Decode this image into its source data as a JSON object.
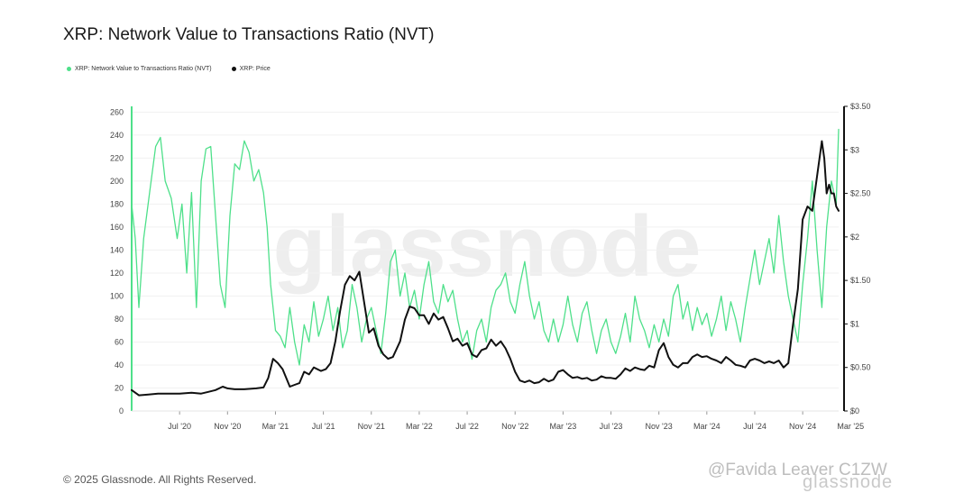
{
  "chart_data": {
    "type": "line",
    "title": "XRP: Network Value to Transactions Ratio (NVT)",
    "x_ticks": [
      "Jul '20",
      "Nov '20",
      "Mar '21",
      "Jul '21",
      "Nov '21",
      "Mar '22",
      "Jul '22",
      "Nov '22",
      "Mar '23",
      "Jul '23",
      "Nov '23",
      "Mar '24",
      "Jul '24",
      "Nov '24",
      "Mar '25"
    ],
    "y_left_ticks": [
      0,
      20,
      40,
      60,
      80,
      100,
      120,
      140,
      160,
      180,
      200,
      220,
      240,
      260
    ],
    "y_left_tick_labels": [
      "0",
      "20",
      "40",
      "60",
      "80",
      "100",
      "120",
      "140",
      "160",
      "180",
      "200",
      "220",
      "240",
      "260"
    ],
    "y_left_range": [
      0,
      265
    ],
    "y_right_ticks": [
      0,
      0.5,
      1,
      1.5,
      2,
      2.5,
      3,
      3.5
    ],
    "y_right_tick_labels": [
      "$0",
      "$0.50",
      "$1",
      "$1.50",
      "$2",
      "$2.50",
      "$3",
      "$3.50"
    ],
    "y_right_range": [
      0,
      3.5
    ],
    "x_range_months": [
      0,
      59
    ],
    "series": [
      {
        "name": "XRP: Network Value to Transactions Ratio (NVT)",
        "axis": "left",
        "color": "#4ee08a",
        "points": [
          [
            0,
            180
          ],
          [
            0.3,
            150
          ],
          [
            0.6,
            90
          ],
          [
            1,
            150
          ],
          [
            1.5,
            190
          ],
          [
            2,
            230
          ],
          [
            2.4,
            238
          ],
          [
            2.8,
            200
          ],
          [
            3.3,
            185
          ],
          [
            3.8,
            150
          ],
          [
            4.2,
            180
          ],
          [
            4.6,
            120
          ],
          [
            5,
            190
          ],
          [
            5.4,
            90
          ],
          [
            5.8,
            200
          ],
          [
            6.2,
            228
          ],
          [
            6.6,
            230
          ],
          [
            7,
            170
          ],
          [
            7.4,
            110
          ],
          [
            7.8,
            90
          ],
          [
            8.2,
            170
          ],
          [
            8.6,
            215
          ],
          [
            9,
            210
          ],
          [
            9.4,
            235
          ],
          [
            9.8,
            225
          ],
          [
            10.2,
            200
          ],
          [
            10.6,
            210
          ],
          [
            11,
            190
          ],
          [
            11.3,
            160
          ],
          [
            11.6,
            110
          ],
          [
            12,
            70
          ],
          [
            12.4,
            65
          ],
          [
            12.8,
            55
          ],
          [
            13.2,
            90
          ],
          [
            13.6,
            60
          ],
          [
            14,
            40
          ],
          [
            14.4,
            75
          ],
          [
            14.8,
            60
          ],
          [
            15.2,
            95
          ],
          [
            15.6,
            65
          ],
          [
            16,
            80
          ],
          [
            16.4,
            100
          ],
          [
            16.8,
            70
          ],
          [
            17.2,
            90
          ],
          [
            17.6,
            55
          ],
          [
            18,
            70
          ],
          [
            18.4,
            110
          ],
          [
            18.8,
            90
          ],
          [
            19.2,
            60
          ],
          [
            19.6,
            80
          ],
          [
            20,
            90
          ],
          [
            20.4,
            70
          ],
          [
            20.8,
            50
          ],
          [
            21.2,
            85
          ],
          [
            21.6,
            130
          ],
          [
            22,
            140
          ],
          [
            22.4,
            100
          ],
          [
            22.8,
            120
          ],
          [
            23.2,
            90
          ],
          [
            23.6,
            105
          ],
          [
            24,
            80
          ],
          [
            24.4,
            110
          ],
          [
            24.8,
            130
          ],
          [
            25.2,
            95
          ],
          [
            25.6,
            85
          ],
          [
            26,
            110
          ],
          [
            26.4,
            95
          ],
          [
            26.8,
            105
          ],
          [
            27.2,
            80
          ],
          [
            27.6,
            60
          ],
          [
            28,
            70
          ],
          [
            28.4,
            45
          ],
          [
            28.8,
            70
          ],
          [
            29.2,
            80
          ],
          [
            29.6,
            60
          ],
          [
            30,
            90
          ],
          [
            30.4,
            105
          ],
          [
            30.8,
            110
          ],
          [
            31.2,
            120
          ],
          [
            31.6,
            95
          ],
          [
            32,
            85
          ],
          [
            32.4,
            110
          ],
          [
            32.8,
            130
          ],
          [
            33.2,
            100
          ],
          [
            33.6,
            80
          ],
          [
            34,
            95
          ],
          [
            34.4,
            70
          ],
          [
            34.8,
            60
          ],
          [
            35.2,
            80
          ],
          [
            35.6,
            60
          ],
          [
            36,
            75
          ],
          [
            36.4,
            100
          ],
          [
            36.8,
            75
          ],
          [
            37.2,
            60
          ],
          [
            37.6,
            85
          ],
          [
            38,
            95
          ],
          [
            38.4,
            70
          ],
          [
            38.8,
            50
          ],
          [
            39.2,
            70
          ],
          [
            39.6,
            80
          ],
          [
            40,
            60
          ],
          [
            40.4,
            50
          ],
          [
            40.8,
            65
          ],
          [
            41.2,
            85
          ],
          [
            41.6,
            60
          ],
          [
            42,
            100
          ],
          [
            42.4,
            80
          ],
          [
            42.8,
            70
          ],
          [
            43.2,
            55
          ],
          [
            43.6,
            75
          ],
          [
            44,
            60
          ],
          [
            44.4,
            80
          ],
          [
            44.8,
            65
          ],
          [
            45.2,
            100
          ],
          [
            45.6,
            110
          ],
          [
            46,
            80
          ],
          [
            46.4,
            95
          ],
          [
            46.8,
            70
          ],
          [
            47.2,
            90
          ],
          [
            47.6,
            75
          ],
          [
            48,
            85
          ],
          [
            48.4,
            65
          ],
          [
            48.8,
            80
          ],
          [
            49.2,
            100
          ],
          [
            49.6,
            70
          ],
          [
            50,
            95
          ],
          [
            50.4,
            80
          ],
          [
            50.8,
            60
          ],
          [
            51.2,
            90
          ],
          [
            51.6,
            115
          ],
          [
            52,
            140
          ],
          [
            52.4,
            110
          ],
          [
            52.8,
            130
          ],
          [
            53.2,
            150
          ],
          [
            53.6,
            120
          ],
          [
            54,
            170
          ],
          [
            54.4,
            130
          ],
          [
            54.8,
            100
          ],
          [
            55.2,
            80
          ],
          [
            55.6,
            60
          ],
          [
            56,
            110
          ],
          [
            56.4,
            150
          ],
          [
            56.8,
            200
          ],
          [
            57.2,
            140
          ],
          [
            57.6,
            90
          ],
          [
            58,
            160
          ],
          [
            58.4,
            200
          ],
          [
            58.8,
            180
          ],
          [
            59,
            245
          ]
        ]
      },
      {
        "name": "XRP: Price",
        "axis": "right",
        "color": "#111111",
        "points": [
          [
            0,
            0.24
          ],
          [
            0.6,
            0.18
          ],
          [
            1.4,
            0.19
          ],
          [
            2.2,
            0.2
          ],
          [
            3,
            0.2
          ],
          [
            4,
            0.2
          ],
          [
            5,
            0.21
          ],
          [
            5.8,
            0.2
          ],
          [
            6.4,
            0.22
          ],
          [
            7,
            0.24
          ],
          [
            7.6,
            0.28
          ],
          [
            8,
            0.26
          ],
          [
            8.6,
            0.25
          ],
          [
            9.4,
            0.25
          ],
          [
            10.4,
            0.26
          ],
          [
            11,
            0.27
          ],
          [
            11.4,
            0.38
          ],
          [
            11.8,
            0.6
          ],
          [
            12.2,
            0.55
          ],
          [
            12.6,
            0.48
          ],
          [
            13.2,
            0.28
          ],
          [
            13.6,
            0.3
          ],
          [
            14,
            0.32
          ],
          [
            14.4,
            0.45
          ],
          [
            14.8,
            0.42
          ],
          [
            15.2,
            0.5
          ],
          [
            15.8,
            0.46
          ],
          [
            16.2,
            0.48
          ],
          [
            16.6,
            0.55
          ],
          [
            17,
            0.8
          ],
          [
            17.4,
            1.15
          ],
          [
            17.8,
            1.45
          ],
          [
            18.2,
            1.55
          ],
          [
            18.6,
            1.5
          ],
          [
            19,
            1.6
          ],
          [
            19.4,
            1.25
          ],
          [
            19.8,
            0.9
          ],
          [
            20.2,
            0.95
          ],
          [
            20.6,
            0.75
          ],
          [
            21,
            0.65
          ],
          [
            21.4,
            0.6
          ],
          [
            21.8,
            0.62
          ],
          [
            22.4,
            0.8
          ],
          [
            22.8,
            1.05
          ],
          [
            23.2,
            1.2
          ],
          [
            23.6,
            1.18
          ],
          [
            24,
            1.1
          ],
          [
            24.4,
            1.1
          ],
          [
            24.8,
            1.0
          ],
          [
            25.2,
            1.12
          ],
          [
            25.6,
            1.05
          ],
          [
            26,
            1.08
          ],
          [
            26.4,
            0.95
          ],
          [
            26.8,
            0.8
          ],
          [
            27.2,
            0.83
          ],
          [
            27.6,
            0.75
          ],
          [
            28,
            0.78
          ],
          [
            28.4,
            0.65
          ],
          [
            28.8,
            0.62
          ],
          [
            29.2,
            0.7
          ],
          [
            29.6,
            0.72
          ],
          [
            30,
            0.82
          ],
          [
            30.4,
            0.75
          ],
          [
            30.8,
            0.8
          ],
          [
            31.2,
            0.72
          ],
          [
            31.6,
            0.6
          ],
          [
            32,
            0.45
          ],
          [
            32.4,
            0.35
          ],
          [
            32.8,
            0.33
          ],
          [
            33.2,
            0.35
          ],
          [
            33.6,
            0.32
          ],
          [
            34,
            0.33
          ],
          [
            34.4,
            0.37
          ],
          [
            34.8,
            0.34
          ],
          [
            35.2,
            0.36
          ],
          [
            35.6,
            0.45
          ],
          [
            36,
            0.47
          ],
          [
            36.4,
            0.42
          ],
          [
            36.8,
            0.38
          ],
          [
            37.2,
            0.39
          ],
          [
            37.6,
            0.37
          ],
          [
            38,
            0.38
          ],
          [
            38.4,
            0.35
          ],
          [
            38.8,
            0.36
          ],
          [
            39.2,
            0.4
          ],
          [
            39.6,
            0.38
          ],
          [
            40,
            0.38
          ],
          [
            40.4,
            0.37
          ],
          [
            40.8,
            0.42
          ],
          [
            41.2,
            0.49
          ],
          [
            41.6,
            0.46
          ],
          [
            42,
            0.5
          ],
          [
            42.4,
            0.48
          ],
          [
            42.8,
            0.47
          ],
          [
            43.2,
            0.52
          ],
          [
            43.6,
            0.5
          ],
          [
            44,
            0.7
          ],
          [
            44.4,
            0.78
          ],
          [
            44.8,
            0.62
          ],
          [
            45.2,
            0.53
          ],
          [
            45.6,
            0.5
          ],
          [
            46,
            0.55
          ],
          [
            46.4,
            0.55
          ],
          [
            46.8,
            0.62
          ],
          [
            47.2,
            0.65
          ],
          [
            47.6,
            0.62
          ],
          [
            48,
            0.63
          ],
          [
            48.4,
            0.6
          ],
          [
            48.8,
            0.58
          ],
          [
            49.2,
            0.55
          ],
          [
            49.6,
            0.62
          ],
          [
            50,
            0.58
          ],
          [
            50.4,
            0.53
          ],
          [
            50.8,
            0.52
          ],
          [
            51.2,
            0.5
          ],
          [
            51.6,
            0.58
          ],
          [
            52,
            0.6
          ],
          [
            52.4,
            0.58
          ],
          [
            52.8,
            0.55
          ],
          [
            53.2,
            0.57
          ],
          [
            53.6,
            0.55
          ],
          [
            54,
            0.58
          ],
          [
            54.4,
            0.5
          ],
          [
            54.8,
            0.55
          ],
          [
            55.2,
            1.0
          ],
          [
            55.6,
            1.4
          ],
          [
            56,
            2.2
          ],
          [
            56.4,
            2.35
          ],
          [
            56.8,
            2.3
          ],
          [
            57.2,
            2.7
          ],
          [
            57.6,
            3.1
          ],
          [
            57.8,
            2.9
          ],
          [
            58,
            2.5
          ],
          [
            58.2,
            2.6
          ],
          [
            58.4,
            2.5
          ],
          [
            58.6,
            2.5
          ],
          [
            58.8,
            2.35
          ],
          [
            59,
            2.3
          ]
        ]
      }
    ],
    "legend": [
      {
        "label": "XRP: Network Value to Transactions Ratio (NVT)",
        "color": "#4ee08a"
      },
      {
        "label": "XRP: Price",
        "color": "#111111"
      }
    ],
    "legend_position": "top-left",
    "grid": true
  },
  "branding": {
    "background_watermark": "glassnode",
    "copyright": "© 2025 Glassnode. All Rights Reserved.",
    "user_watermark": "@Favida Leaver C1ZW",
    "brand_watermark": "glassnode"
  }
}
